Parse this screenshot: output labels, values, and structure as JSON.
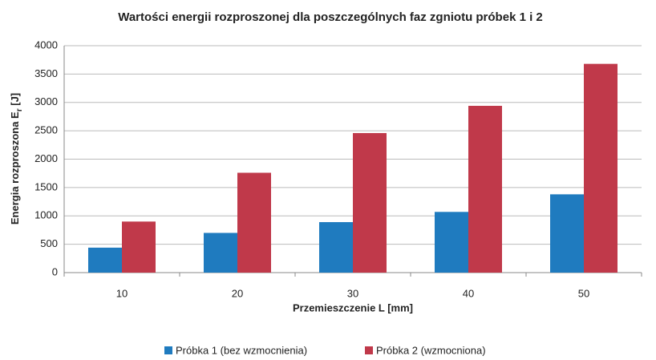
{
  "chart_data": {
    "type": "bar",
    "title": "Wartości energii rozproszonej dla poszczególnych faz zgniotu próbek 1 i 2",
    "x_label": "Przemieszczenie  L  [mm]",
    "y_label": "Energia  rozproszona  E",
    "y_label_sub": "r",
    "y_label_unit": " [J]",
    "categories": [
      "10",
      "20",
      "30",
      "40",
      "50"
    ],
    "series": [
      {
        "name": "Próbka 1 (bez wzmocnienia)",
        "color": "#1f7bbf",
        "values": [
          440,
          700,
          890,
          1070,
          1380
        ]
      },
      {
        "name": "Próbka 2 (wzmocniona)",
        "color": "#c0394a",
        "values": [
          900,
          1760,
          2460,
          2940,
          3680
        ]
      }
    ],
    "ylim": [
      0,
      4000
    ],
    "yticks": [
      0,
      500,
      1000,
      1500,
      2000,
      2500,
      3000,
      3500,
      4000
    ],
    "grid": true,
    "legend": "bottom"
  }
}
